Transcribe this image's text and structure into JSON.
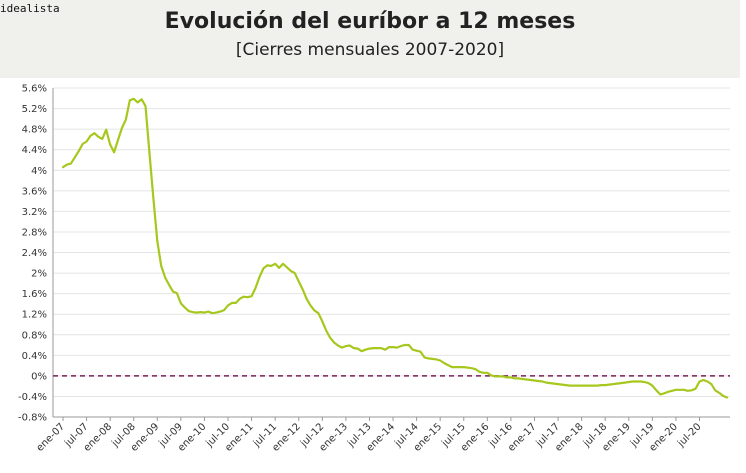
{
  "brand": "idealista",
  "chart_data": {
    "type": "line",
    "title": "Evolución del euríbor a 12 meses",
    "subtitle": "[Cierres mensuales 2007-2020]",
    "xlabel": "",
    "ylabel": "",
    "ylim": [
      -0.8,
      5.6
    ],
    "y_ticks": [
      "-0.8%",
      "-0.4%",
      "0%",
      "0.4%",
      "0.8%",
      "1.2%",
      "1.6%",
      "2%",
      "2.4%",
      "2.8%",
      "3.2%",
      "3.6%",
      "4%",
      "4.4%",
      "4.8%",
      "5.2%",
      "5.6%"
    ],
    "x_ticks": [
      "ene-07",
      "jul-07",
      "ene-08",
      "jul-08",
      "ene-09",
      "jul-09",
      "ene-10",
      "jul-10",
      "ene-11",
      "jul-11",
      "ene-12",
      "jul-12",
      "ene-13",
      "jul-13",
      "ene-14",
      "jul-14",
      "ene-15",
      "jul-15",
      "ene-16",
      "jul-16",
      "ene-17",
      "jul-17",
      "ene-18",
      "jul-18",
      "ene-19",
      "jul-19",
      "ene-20",
      "jul-20"
    ],
    "grid": "horizontal",
    "reference_line": 0,
    "line_color": "#a6c81e",
    "reference_color": "#7a1e5a",
    "series": [
      {
        "start": "ene-07",
        "frequency": "monthly",
        "values": [
          4.06,
          4.11,
          4.13,
          4.25,
          4.37,
          4.51,
          4.56,
          4.67,
          4.72,
          4.65,
          4.61,
          4.79,
          4.5,
          4.35,
          4.59,
          4.82,
          4.99,
          5.36,
          5.39,
          5.32,
          5.38,
          5.25,
          4.35,
          3.45,
          2.62,
          2.14,
          1.91,
          1.77,
          1.64,
          1.61,
          1.41,
          1.33,
          1.26,
          1.24,
          1.23,
          1.24,
          1.23,
          1.25,
          1.22,
          1.23,
          1.25,
          1.28,
          1.37,
          1.42,
          1.42,
          1.5,
          1.54,
          1.53,
          1.55,
          1.71,
          1.92,
          2.09,
          2.15,
          2.14,
          2.18,
          2.1,
          2.18,
          2.11,
          2.04,
          2.0,
          1.84,
          1.68,
          1.5,
          1.37,
          1.27,
          1.22,
          1.06,
          0.88,
          0.74,
          0.65,
          0.59,
          0.55,
          0.58,
          0.59,
          0.54,
          0.53,
          0.48,
          0.51,
          0.53,
          0.54,
          0.54,
          0.54,
          0.51,
          0.56,
          0.56,
          0.55,
          0.58,
          0.6,
          0.6,
          0.51,
          0.49,
          0.47,
          0.36,
          0.34,
          0.33,
          0.32,
          0.3,
          0.25,
          0.21,
          0.17,
          0.17,
          0.17,
          0.17,
          0.16,
          0.15,
          0.13,
          0.08,
          0.06,
          0.06,
          0.01,
          -0.01,
          -0.01,
          -0.01,
          -0.03,
          -0.03,
          -0.05,
          -0.05,
          -0.06,
          -0.07,
          -0.08,
          -0.09,
          -0.1,
          -0.11,
          -0.13,
          -0.14,
          -0.15,
          -0.16,
          -0.17,
          -0.18,
          -0.19,
          -0.19,
          -0.19,
          -0.19,
          -0.19,
          -0.19,
          -0.19,
          -0.19,
          -0.18,
          -0.18,
          -0.17,
          -0.16,
          -0.15,
          -0.14,
          -0.13,
          -0.12,
          -0.11,
          -0.11,
          -0.11,
          -0.12,
          -0.14,
          -0.19,
          -0.28,
          -0.36,
          -0.34,
          -0.31,
          -0.29,
          -0.27,
          -0.27,
          -0.27,
          -0.29,
          -0.28,
          -0.25,
          -0.11,
          -0.08,
          -0.11,
          -0.16,
          -0.28,
          -0.33,
          -0.39,
          -0.42
        ]
      }
    ]
  }
}
